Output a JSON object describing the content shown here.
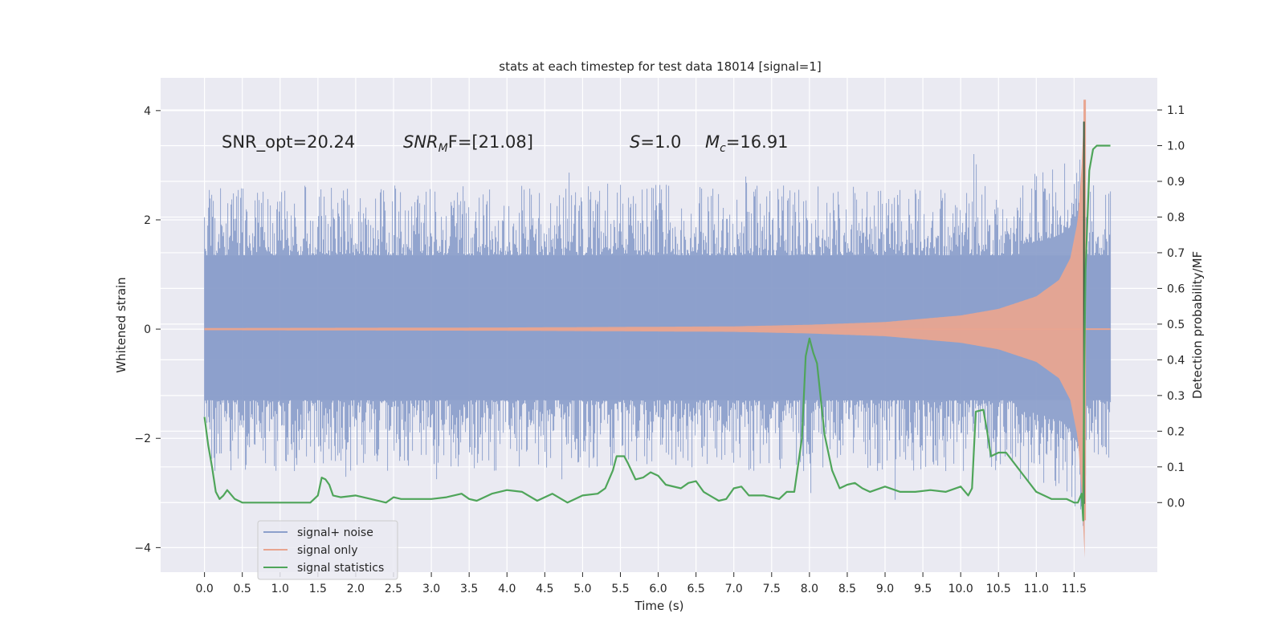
{
  "chart_data": {
    "type": "line",
    "title": "stats at each timestep for test data 18014 [signal=1]",
    "xlabel": "Time (s)",
    "ylabel_left": "Whitened strain",
    "ylabel_right": "Detection probability/MF",
    "xlim": [
      -0.58,
      12.6
    ],
    "ylim_left": [
      -4.45,
      4.6
    ],
    "ylim_right": [
      -0.195,
      1.19
    ],
    "x_ticks": [
      0.0,
      0.5,
      1.0,
      1.5,
      2.0,
      2.5,
      3.0,
      3.5,
      4.0,
      4.5,
      5.0,
      5.5,
      6.0,
      6.5,
      7.0,
      7.5,
      8.0,
      8.5,
      9.0,
      9.5,
      10.0,
      10.5,
      11.0,
      11.5
    ],
    "x_tick_labels": [
      "0.0",
      "0.5",
      "1.0",
      "1.5",
      "2.0",
      "2.5",
      "3.0",
      "3.5",
      "4.0",
      "4.5",
      "5.0",
      "5.5",
      "6.0",
      "6.5",
      "7.0",
      "7.5",
      "8.0",
      "8.5",
      "9.0",
      "9.5",
      "10.0",
      "10.5",
      "11.0",
      "11.5"
    ],
    "y_left_ticks": [
      -4,
      -2,
      0,
      2,
      4
    ],
    "y_left_tick_labels": [
      "−4",
      "−2",
      "0",
      "2",
      "4"
    ],
    "y_right_ticks": [
      0.0,
      0.1,
      0.2,
      0.3,
      0.4,
      0.5,
      0.6,
      0.7,
      0.8,
      0.9,
      1.0,
      1.1
    ],
    "y_right_tick_labels": [
      "0.0",
      "0.1",
      "0.2",
      "0.3",
      "0.4",
      "0.5",
      "0.6",
      "0.7",
      "0.8",
      "0.9",
      "1.0",
      "1.1"
    ],
    "grid": true,
    "legend_position": "bottom-left",
    "annotations": {
      "snr_opt": "SNR_opt=20.24",
      "snr_mf_main": "SNR",
      "snr_mf_sub": "M",
      "snr_mf_rest": "F=[21.08]",
      "s_symbol": "S",
      "s_value": "=1.0",
      "mc_symbol": "M",
      "mc_sub": "c",
      "mc_value": "=16.91"
    },
    "noise_envelope": {
      "x_range": [
        0.0,
        11.98
      ],
      "typical_upper": 1.35,
      "typical_lower": -1.3,
      "peak_max": 3.7,
      "peak_min": -4.05
    },
    "signal_only": {
      "x_range": [
        0.0,
        11.98
      ],
      "amplitude": [
        [
          0.0,
          0.02
        ],
        [
          4.0,
          0.03
        ],
        [
          7.0,
          0.05
        ],
        [
          8.0,
          0.08
        ],
        [
          9.0,
          0.13
        ],
        [
          10.0,
          0.25
        ],
        [
          10.5,
          0.37
        ],
        [
          11.0,
          0.6
        ],
        [
          11.3,
          0.9
        ],
        [
          11.45,
          1.3
        ],
        [
          11.55,
          2.0
        ],
        [
          11.6,
          3.0
        ],
        [
          11.64,
          4.2
        ],
        [
          11.66,
          0.0
        ],
        [
          11.98,
          0.0
        ]
      ]
    },
    "series": [
      {
        "name": "signal+ noise",
        "color": "#8da0cb"
      },
      {
        "name": "signal only",
        "color": "#e8a590"
      },
      {
        "name": "signal statistics",
        "color": "#4fa55a",
        "x": [
          0.0,
          0.05,
          0.1,
          0.15,
          0.2,
          0.25,
          0.3,
          0.4,
          0.5,
          0.7,
          1.0,
          1.2,
          1.4,
          1.5,
          1.55,
          1.6,
          1.65,
          1.7,
          1.8,
          2.0,
          2.2,
          2.4,
          2.5,
          2.6,
          2.8,
          3.0,
          3.2,
          3.4,
          3.5,
          3.6,
          3.8,
          4.0,
          4.2,
          4.4,
          4.6,
          4.8,
          5.0,
          5.2,
          5.3,
          5.4,
          5.45,
          5.5,
          5.55,
          5.6,
          5.7,
          5.8,
          5.9,
          6.0,
          6.1,
          6.3,
          6.4,
          6.5,
          6.6,
          6.8,
          6.9,
          7.0,
          7.1,
          7.2,
          7.4,
          7.6,
          7.7,
          7.8,
          7.9,
          7.95,
          8.0,
          8.05,
          8.1,
          8.2,
          8.3,
          8.4,
          8.5,
          8.6,
          8.7,
          8.8,
          9.0,
          9.2,
          9.4,
          9.6,
          9.8,
          10.0,
          10.1,
          10.15,
          10.2,
          10.3,
          10.35,
          10.4,
          10.5,
          10.6,
          10.8,
          11.0,
          11.2,
          11.4,
          11.5,
          11.55,
          11.6,
          11.62,
          11.63,
          11.65,
          11.7,
          11.75,
          11.8,
          11.9,
          11.98
        ],
        "y": [
          0.24,
          0.16,
          0.1,
          0.03,
          0.01,
          0.02,
          0.035,
          0.01,
          0.0,
          0.0,
          0.0,
          0.0,
          0.0,
          0.02,
          0.07,
          0.065,
          0.05,
          0.02,
          0.015,
          0.02,
          0.01,
          0.0,
          0.015,
          0.01,
          0.01,
          0.01,
          0.015,
          0.025,
          0.01,
          0.005,
          0.025,
          0.035,
          0.03,
          0.005,
          0.025,
          0.0,
          0.02,
          0.025,
          0.04,
          0.09,
          0.13,
          0.13,
          0.13,
          0.11,
          0.065,
          0.07,
          0.085,
          0.075,
          0.05,
          0.04,
          0.055,
          0.06,
          0.03,
          0.005,
          0.01,
          0.04,
          0.045,
          0.02,
          0.02,
          0.01,
          0.03,
          0.03,
          0.18,
          0.41,
          0.46,
          0.42,
          0.39,
          0.19,
          0.09,
          0.04,
          0.05,
          0.055,
          0.04,
          0.03,
          0.045,
          0.03,
          0.03,
          0.035,
          0.03,
          0.045,
          0.02,
          0.04,
          0.255,
          0.26,
          0.2,
          0.13,
          0.14,
          0.14,
          0.085,
          0.03,
          0.01,
          0.01,
          0.0,
          0.0,
          0.025,
          -0.05,
          0.3,
          0.65,
          0.93,
          0.99,
          1.0,
          1.0,
          1.0
        ]
      }
    ]
  }
}
